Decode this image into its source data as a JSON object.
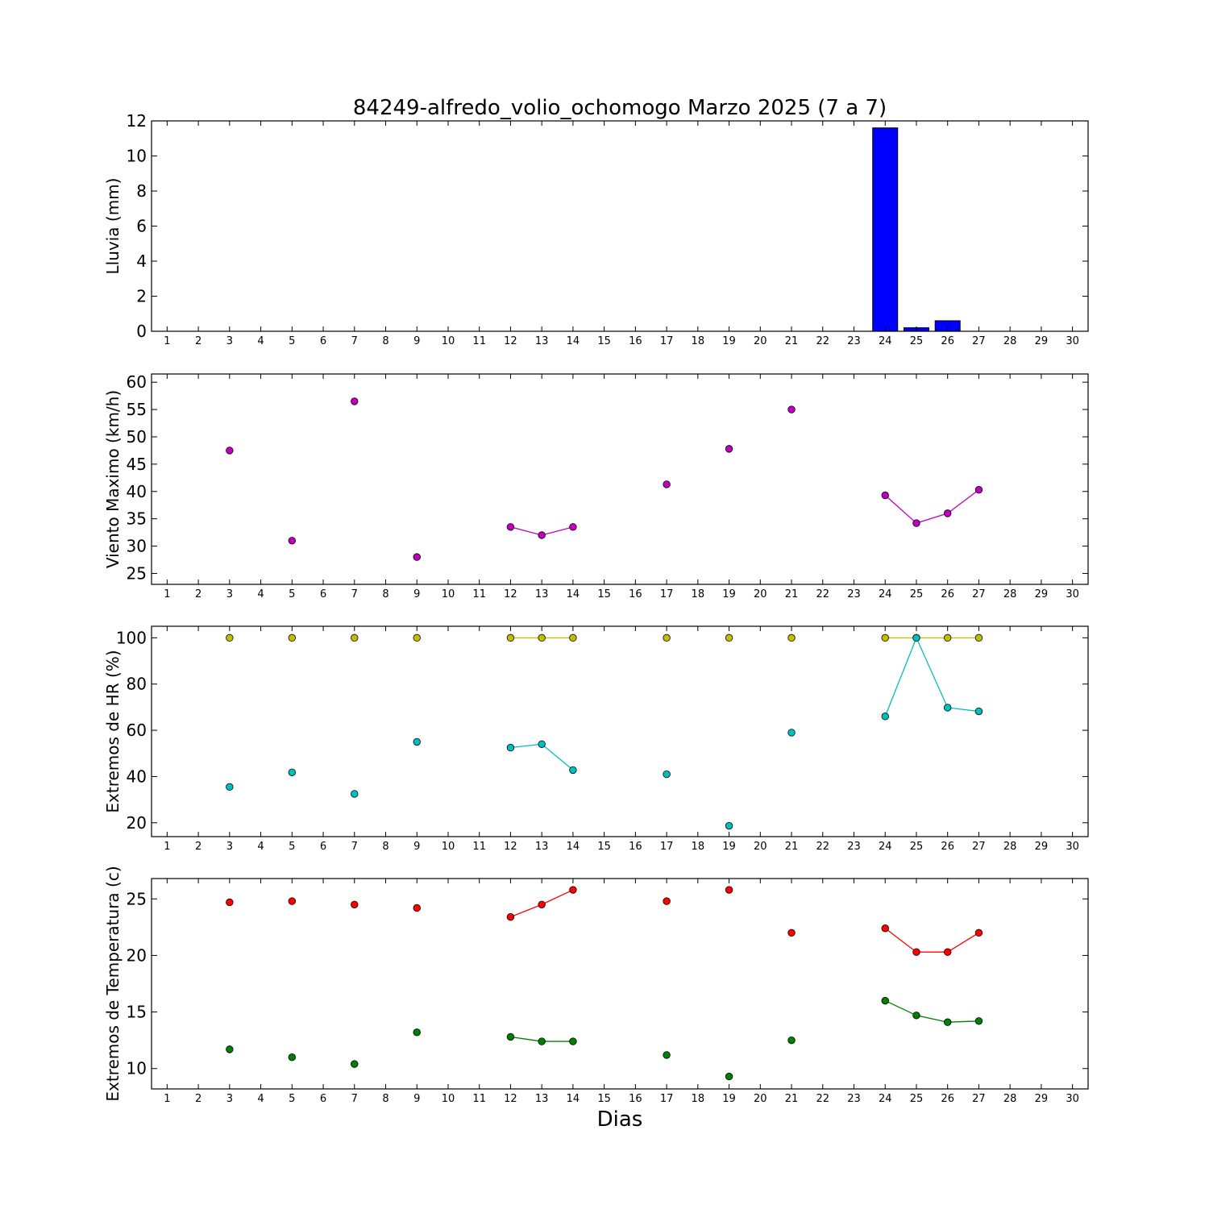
{
  "chart_data": {
    "type": "multi-panel",
    "title": "84249-alfredo_volio_ochomogo Marzo 2025  (7 a 7)",
    "xlabel": "Dias",
    "x_ticks": [
      1,
      2,
      3,
      4,
      5,
      6,
      7,
      8,
      9,
      10,
      11,
      12,
      13,
      14,
      15,
      16,
      17,
      18,
      19,
      20,
      21,
      22,
      23,
      24,
      25,
      26,
      27,
      28,
      29,
      30
    ],
    "xlim": [
      0.5,
      30.5
    ],
    "panels": [
      {
        "type": "bar",
        "ylabel": "Lluvia (mm)",
        "ylim": [
          0,
          12
        ],
        "yticks": [
          0,
          2,
          4,
          6,
          8,
          10,
          12
        ],
        "grid": false,
        "series": [
          {
            "color": "#0000ff",
            "x": [
              3,
              5,
              7,
              9,
              12,
              13,
              14,
              17,
              19,
              21,
              24,
              25,
              26,
              27
            ],
            "values": [
              0,
              0,
              0,
              0,
              0,
              0,
              0,
              0,
              0,
              0,
              11.6,
              0.2,
              0.6,
              0
            ]
          }
        ]
      },
      {
        "type": "line",
        "ylabel": "Viento Maximo (km/h)",
        "ylim": [
          23,
          61.5
        ],
        "yticks": [
          25,
          30,
          35,
          40,
          45,
          50,
          55,
          60
        ],
        "grid": false,
        "series": [
          {
            "color": "#bf00bf",
            "x": [
              3,
              5,
              7,
              9,
              12,
              13,
              14,
              17,
              19,
              21,
              24,
              25,
              26,
              27
            ],
            "values": [
              47.5,
              31,
              56.5,
              28,
              33.5,
              32,
              33.5,
              41.3,
              47.8,
              55,
              39.3,
              34.2,
              36,
              40.3
            ]
          }
        ]
      },
      {
        "type": "line",
        "ylabel": "Extremos de HR (%)",
        "ylim": [
          14,
          105
        ],
        "yticks": [
          20,
          40,
          60,
          80,
          100
        ],
        "grid": false,
        "series": [
          {
            "color": "#bfbf00",
            "x": [
              3,
              5,
              7,
              9,
              12,
              13,
              14,
              17,
              19,
              21,
              24,
              25,
              26,
              27
            ],
            "values": [
              100,
              100,
              100,
              100,
              100,
              100,
              100,
              100,
              100,
              100,
              100,
              100,
              100,
              100
            ]
          },
          {
            "color": "#00bfbf",
            "x": [
              3,
              5,
              7,
              9,
              12,
              13,
              14,
              17,
              19,
              21,
              24,
              25,
              26,
              27
            ],
            "values": [
              35.5,
              41.8,
              32.5,
              55,
              52.5,
              54,
              42.8,
              41,
              18.7,
              59,
              66,
              100,
              69.8,
              68.2
            ]
          }
        ]
      },
      {
        "type": "line",
        "ylabel": "Extremos de Temperatura (c)",
        "ylim": [
          8.2,
          26.8
        ],
        "yticks": [
          10,
          15,
          20,
          25
        ],
        "grid": false,
        "series": [
          {
            "color": "#ff0000",
            "x": [
              3,
              5,
              7,
              9,
              12,
              13,
              14,
              17,
              19,
              21,
              24,
              25,
              26,
              27
            ],
            "values": [
              24.7,
              24.8,
              24.5,
              24.2,
              23.4,
              24.5,
              25.8,
              24.8,
              25.8,
              22,
              22.4,
              20.3,
              20.3,
              22
            ]
          },
          {
            "color": "#008000",
            "x": [
              3,
              5,
              7,
              9,
              12,
              13,
              14,
              17,
              19,
              21,
              24,
              25,
              26,
              27
            ],
            "values": [
              11.7,
              11,
              10.4,
              13.2,
              12.8,
              12.4,
              12.4,
              11.2,
              9.3,
              12.5,
              16,
              14.7,
              14.1,
              14.2
            ]
          }
        ]
      }
    ]
  }
}
